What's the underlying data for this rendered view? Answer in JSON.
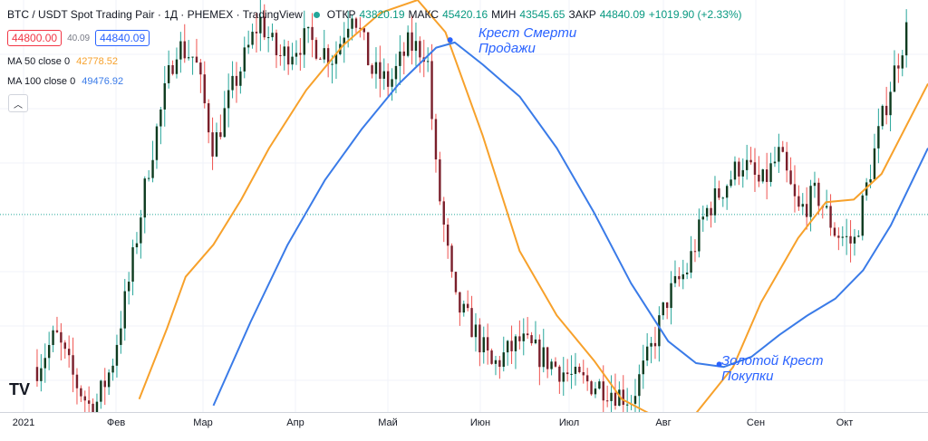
{
  "header": {
    "symbol": "BTC / USDT Spot Trading Pair · 1Д · PHEMEX · TradingView",
    "open_label": "ОТКР",
    "open": "43820.19",
    "high_label": "МАКС",
    "high": "45420.16",
    "low_label": "МИН",
    "low": "43545.65",
    "close_label": "ЗАКР",
    "close": "44840.09",
    "change": "+1019.90 (+2.33%)"
  },
  "prices": {
    "sell": "44800.00",
    "spread": "40.09",
    "buy": "44840.09"
  },
  "indicators": [
    {
      "label": "MA 50 close 0",
      "value": "42778.52",
      "color": "#f7a12b"
    },
    {
      "label": "MA 100 close 0",
      "value": "49476.92",
      "color": "#3a7be8"
    }
  ],
  "collapse_icon": "chevron-up-icon",
  "logo": "TV",
  "annotations": {
    "death_cross": [
      "Крест Смерти",
      "Продажи"
    ],
    "golden_cross": [
      "Золотой Крест",
      "Покупки"
    ]
  },
  "chart_data": {
    "type": "line",
    "x_ticks": [
      "2021",
      "Фев",
      "Мар",
      "Апр",
      "Май",
      "Июн",
      "Июл",
      "Авг",
      "Сен",
      "Окт"
    ],
    "series": [
      {
        "name": "MA 50 close 0",
        "color": "#f7a12b",
        "x": [
          0.15,
          0.18,
          0.2,
          0.23,
          0.26,
          0.29,
          0.33,
          0.37,
          0.41,
          0.45,
          0.48,
          0.52,
          0.56,
          0.6,
          0.64,
          0.67,
          0.71,
          0.75,
          0.79,
          0.82,
          0.86,
          0.89,
          0.92,
          0.95,
          1.0
        ],
        "y": [
          30500,
          36000,
          40000,
          42500,
          46000,
          50000,
          54500,
          58000,
          60500,
          61500,
          59000,
          51000,
          42000,
          37000,
          33500,
          30500,
          29000,
          29400,
          33000,
          38000,
          43000,
          45800,
          46000,
          48000,
          55000
        ]
      },
      {
        "name": "MA 100 close 0",
        "color": "#3a7be8",
        "x": [
          0.23,
          0.27,
          0.31,
          0.35,
          0.39,
          0.43,
          0.47,
          0.49,
          0.52,
          0.56,
          0.6,
          0.64,
          0.68,
          0.72,
          0.75,
          0.78,
          0.81,
          0.84,
          0.87,
          0.9,
          0.93,
          0.96,
          1.0
        ],
        "y": [
          30000,
          36500,
          42500,
          47500,
          51500,
          55000,
          57800,
          58200,
          56500,
          54000,
          50000,
          45000,
          39500,
          35000,
          33300,
          33000,
          33800,
          35500,
          37000,
          38300,
          40500,
          44000,
          50000
        ]
      },
      {
        "name": "price",
        "color": "#131722",
        "x": [
          0.04,
          0.06,
          0.08,
          0.1,
          0.12,
          0.14,
          0.16,
          0.18,
          0.19,
          0.21,
          0.23,
          0.25,
          0.28,
          0.3,
          0.33,
          0.36,
          0.38,
          0.4,
          0.42,
          0.44,
          0.46,
          0.47,
          0.49,
          0.51,
          0.53,
          0.56,
          0.59,
          0.62,
          0.65,
          0.68,
          0.7,
          0.72,
          0.74,
          0.76,
          0.78,
          0.8,
          0.82,
          0.84,
          0.86,
          0.88,
          0.9,
          0.92,
          0.94,
          0.96,
          0.98
        ],
        "y": [
          33000,
          35500,
          32000,
          29500,
          33000,
          40000,
          48500,
          55000,
          58000,
          57000,
          50000,
          54500,
          60000,
          57000,
          58500,
          57000,
          61000,
          56000,
          55000,
          58000,
          57500,
          48000,
          38000,
          36000,
          33000,
          35000,
          33500,
          32000,
          31500,
          30500,
          34000,
          38500,
          40500,
          45000,
          47000,
          49000,
          47000,
          49500,
          45000,
          46500,
          43500,
          42500,
          49000,
          55000,
          60000
        ]
      }
    ],
    "crosses": [
      {
        "name": "death-cross",
        "x": 0.485,
        "y": 58400
      },
      {
        "name": "golden-cross",
        "x": 0.775,
        "y": 33200
      }
    ],
    "ylim": [
      29500,
      61500
    ],
    "reference_price": 44840.09,
    "grid": true
  }
}
